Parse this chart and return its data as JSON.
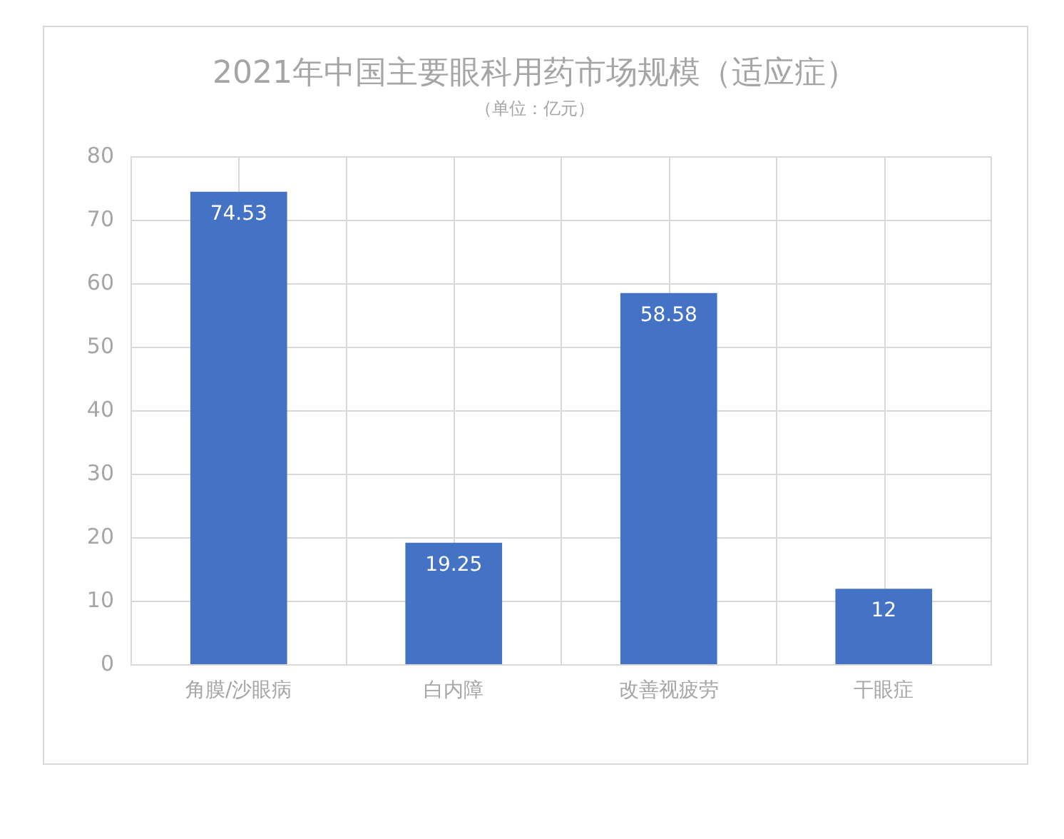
{
  "chart_data": {
    "type": "bar",
    "title": "2021年中国主要眼科用药市场规模（适应症）",
    "subtitle": "（单位：亿元）",
    "categories": [
      "角膜/沙眼病",
      "白内障",
      "改善视疲劳",
      "干眼症"
    ],
    "values": [
      74.53,
      19.25,
      58.58,
      12
    ],
    "color": "#4472c4",
    "ylim": [
      0,
      80
    ],
    "yticks": [
      0,
      10,
      20,
      30,
      40,
      50,
      60,
      70,
      80
    ],
    "grid": true,
    "data_labels": true
  }
}
